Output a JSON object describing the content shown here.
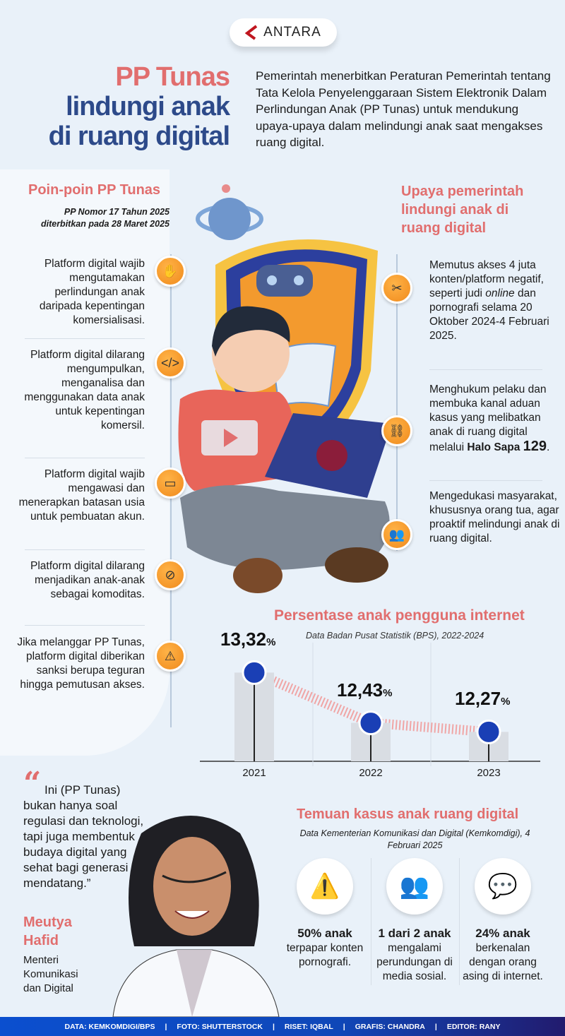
{
  "logo": {
    "text": "ANTARA"
  },
  "header": {
    "title_line1": "PP Tunas",
    "title_line2": "lindungi anak",
    "title_line3": "di ruang digital",
    "intro": "Pemerintah menerbitkan Peraturan Pemerintah tentang Tata Kelola Penyelenggaraan Sistem Elektronik Dalam Perlindungan Anak (PP Tunas) untuk mendukung upaya-upaya dalam melindungi anak saat mengakses ruang digital."
  },
  "points": {
    "heading": "Poin-poin PP Tunas",
    "sub1": "PP Nomor 17 Tahun 2025",
    "sub2": "diterbitkan pada 28 Maret 2025",
    "items": [
      {
        "text": "Platform digital wajib mengutamakan perlindungan anak daripada kepentingan komersialisasi.",
        "icon": "hand-shield-icon"
      },
      {
        "text": "Platform digital dilarang mengumpulkan, menganalisa dan menggunakan data anak untuk kepentingan komersil.",
        "icon": "code-window-icon"
      },
      {
        "text": "Platform digital wajib mengawasi dan menerapkan batasan usia untuk pembuatan akun.",
        "icon": "id-card-icon"
      },
      {
        "text": "Platform digital dilarang menjadikan anak-anak sebagai komoditas.",
        "icon": "ticket-icon"
      },
      {
        "text": "Jika melanggar PP Tunas, platform digital diberikan sanksi berupa teguran hingga pemutusan akses.",
        "icon": "warning-icon"
      }
    ]
  },
  "efforts": {
    "heading_line1": "Upaya pemerintah",
    "heading_line2": "lindungi anak di",
    "heading_line3": "ruang digital",
    "items": [
      {
        "pre": "Memutus akses 4 juta konten/platform negatif, seperti judi ",
        "em": "online",
        "post": " dan pornografi selama 20 Oktober 2024-4 Februari 2025.",
        "icon": "scissors-icon"
      },
      {
        "pre": "Menghukum pelaku dan membuka kanal aduan kasus yang melibatkan anak di ruang digital melalui ",
        "strong": "Halo Sapa ",
        "num": "129",
        "post": ".",
        "icon": "handcuffs-icon"
      },
      {
        "text": "Mengedukasi masyarakat, khususnya orang tua, agar proaktif melindungi anak di ruang digital.",
        "icon": "parents-icon"
      }
    ]
  },
  "chart_data": {
    "type": "line",
    "title": "Persentase anak pengguna internet",
    "subtitle": "Data Badan Pusat Statistik (BPS), 2022-2024",
    "categories": [
      "2021",
      "2022",
      "2023"
    ],
    "values": [
      13.32,
      12.43,
      12.27
    ],
    "labels": [
      "13,32",
      "12,43",
      "12,27"
    ],
    "unit": "%",
    "color": "#1a3fb5",
    "line_color": "#f0a5a5"
  },
  "quote": {
    "text": "Ini (PP Tunas) bukan hanya soal regulasi dan teknologi, tapi juga membentuk budaya digital yang sehat bagi generasi mendatang.”",
    "name_line1": "Meutya",
    "name_line2": "Hafid",
    "role_line1": "Menteri",
    "role_line2": "Komunikasi",
    "role_line3": "dan Digital"
  },
  "findings": {
    "heading": "Temuan kasus anak ruang digital",
    "sub": "Data Kementerian Komunikasi dan Digital (Kemkomdigi), 4 Februari 2025",
    "items": [
      {
        "bold": "50% anak",
        "text": "terpapar konten pornografi.",
        "icon": "warning-icon"
      },
      {
        "bold": "1 dari 2 anak",
        "text": "mengalami perundungan di media sosial.",
        "icon": "people-icon"
      },
      {
        "bold": "24% anak",
        "text": "berkenalan dengan orang asing di internet.",
        "icon": "chat-bubbles-icon"
      }
    ]
  },
  "footer": {
    "credits": [
      "DATA: KEMKOMDIGI/BPS",
      "|",
      "FOTO: SHUTTERSTOCK",
      "|",
      "RISET: IQBAL",
      "|",
      "GRAFIS: CHANDRA",
      "|",
      "EDITOR: RANY"
    ]
  }
}
